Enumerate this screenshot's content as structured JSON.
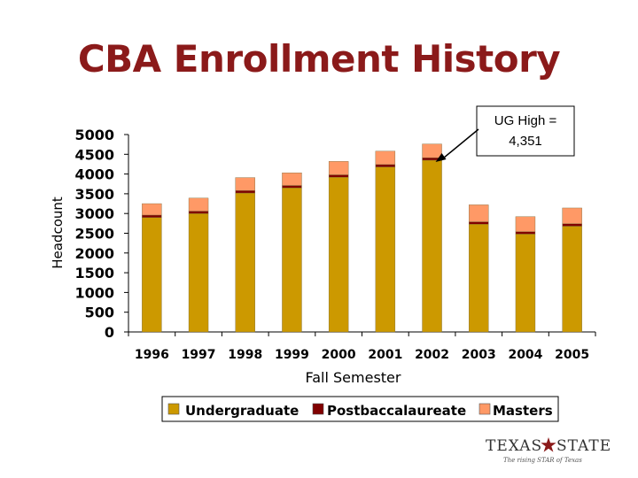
{
  "title": "CBA Enrollment History",
  "chart_data": {
    "type": "bar",
    "stacked": true,
    "categories": [
      "1996",
      "1997",
      "1998",
      "1999",
      "2000",
      "2001",
      "2002",
      "2003",
      "2004",
      "2005"
    ],
    "series": [
      {
        "name": "Undergraduate",
        "color": "#cc9900",
        "values": [
          2900,
          3000,
          3520,
          3650,
          3920,
          4180,
          4351,
          2730,
          2480,
          2680
        ]
      },
      {
        "name": "Postbaccalaureate",
        "color": "#800000",
        "values": [
          60,
          60,
          60,
          60,
          60,
          60,
          60,
          60,
          60,
          60
        ]
      },
      {
        "name": "Masters",
        "color": "#ff9966",
        "values": [
          290,
          330,
          330,
          320,
          340,
          340,
          350,
          430,
          380,
          400
        ]
      }
    ],
    "xlabel": "Fall Semester",
    "ylabel": "Headcount",
    "ylim": [
      0,
      5000
    ],
    "yticks": [
      0,
      500,
      1000,
      1500,
      2000,
      2500,
      3000,
      3500,
      4000,
      4500,
      5000
    ],
    "grid": false,
    "legend": "bottom",
    "annotation": {
      "lines": [
        "UG High =",
        "4,351"
      ],
      "points_to": "2002"
    }
  },
  "logo": {
    "left_word": "TEXAS",
    "right_word": "STATE",
    "tagline": "The rising STAR of Texas",
    "colors": {
      "star": "#8b1a1a",
      "text": "#333333"
    }
  }
}
